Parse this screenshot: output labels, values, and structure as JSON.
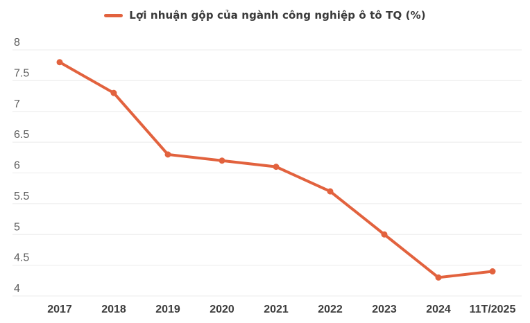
{
  "chart_data": {
    "type": "line",
    "title": "Lợi nhuận gộp của ngành công nghiệp ô tô TQ (%)",
    "series": [
      {
        "name": "Lợi nhuận gộp của ngành công nghiệp ô tô TQ (%)",
        "values": [
          7.8,
          7.3,
          6.3,
          6.2,
          6.1,
          5.7,
          5.0,
          4.3,
          4.4
        ]
      }
    ],
    "categories": [
      "2017",
      "2018",
      "2019",
      "2020",
      "2021",
      "2022",
      "2023",
      "2024",
      "11T/2025"
    ],
    "xlabel": "",
    "ylabel": "",
    "ylim": [
      4,
      8
    ],
    "y_ticks": [
      8,
      7.5,
      7,
      6.5,
      6,
      5.5,
      5,
      4.5,
      4
    ],
    "grid": true,
    "legend_position": "top-center",
    "colors": {
      "series": "#E2623E",
      "grid": "#EBEBEB",
      "background": "#FFFFFF",
      "y_tick_label": "#5C5C5C",
      "x_tick_label": "#3D3D3D",
      "legend_text": "#3A3A3A"
    }
  }
}
